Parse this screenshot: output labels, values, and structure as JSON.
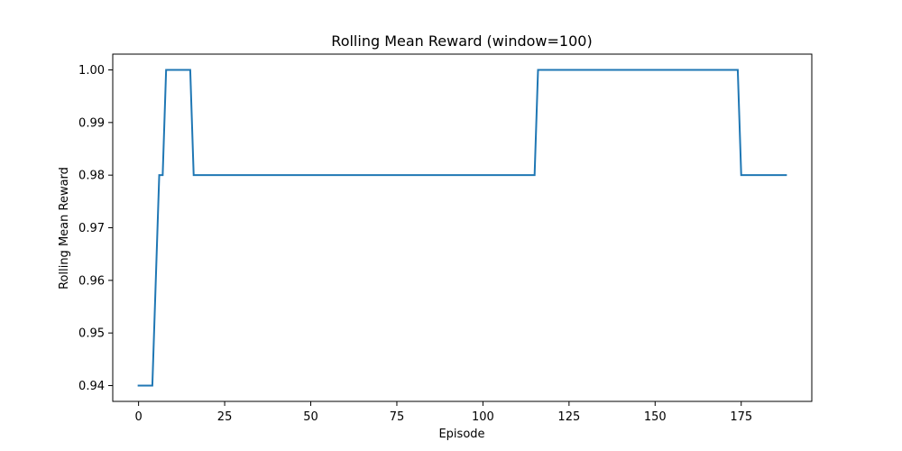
{
  "chart_data": {
    "type": "line",
    "title": "Rolling Mean Reward (window=100)",
    "xlabel": "Episode",
    "ylabel": "Rolling Mean Reward",
    "xlim": [
      -7.5,
      195.5
    ],
    "ylim": [
      0.937,
      1.003
    ],
    "xticks": [
      0,
      25,
      50,
      75,
      100,
      125,
      150,
      175
    ],
    "xtick_labels": [
      "0",
      "25",
      "50",
      "75",
      "100",
      "125",
      "150",
      "175"
    ],
    "yticks": [
      0.94,
      0.95,
      0.96,
      0.97,
      0.98,
      0.99,
      1.0
    ],
    "ytick_labels": [
      "0.94",
      "0.95",
      "0.96",
      "0.97",
      "0.98",
      "0.99",
      "1.00"
    ],
    "grid": false,
    "series": [
      {
        "color": "#1f77b4",
        "x": [
          0,
          4,
          6,
          7,
          8,
          15,
          16,
          115,
          116,
          174,
          175,
          188
        ],
        "y": [
          0.94,
          0.94,
          0.98,
          0.98,
          1.0,
          1.0,
          0.98,
          0.98,
          1.0,
          1.0,
          0.98,
          0.98
        ]
      }
    ]
  }
}
